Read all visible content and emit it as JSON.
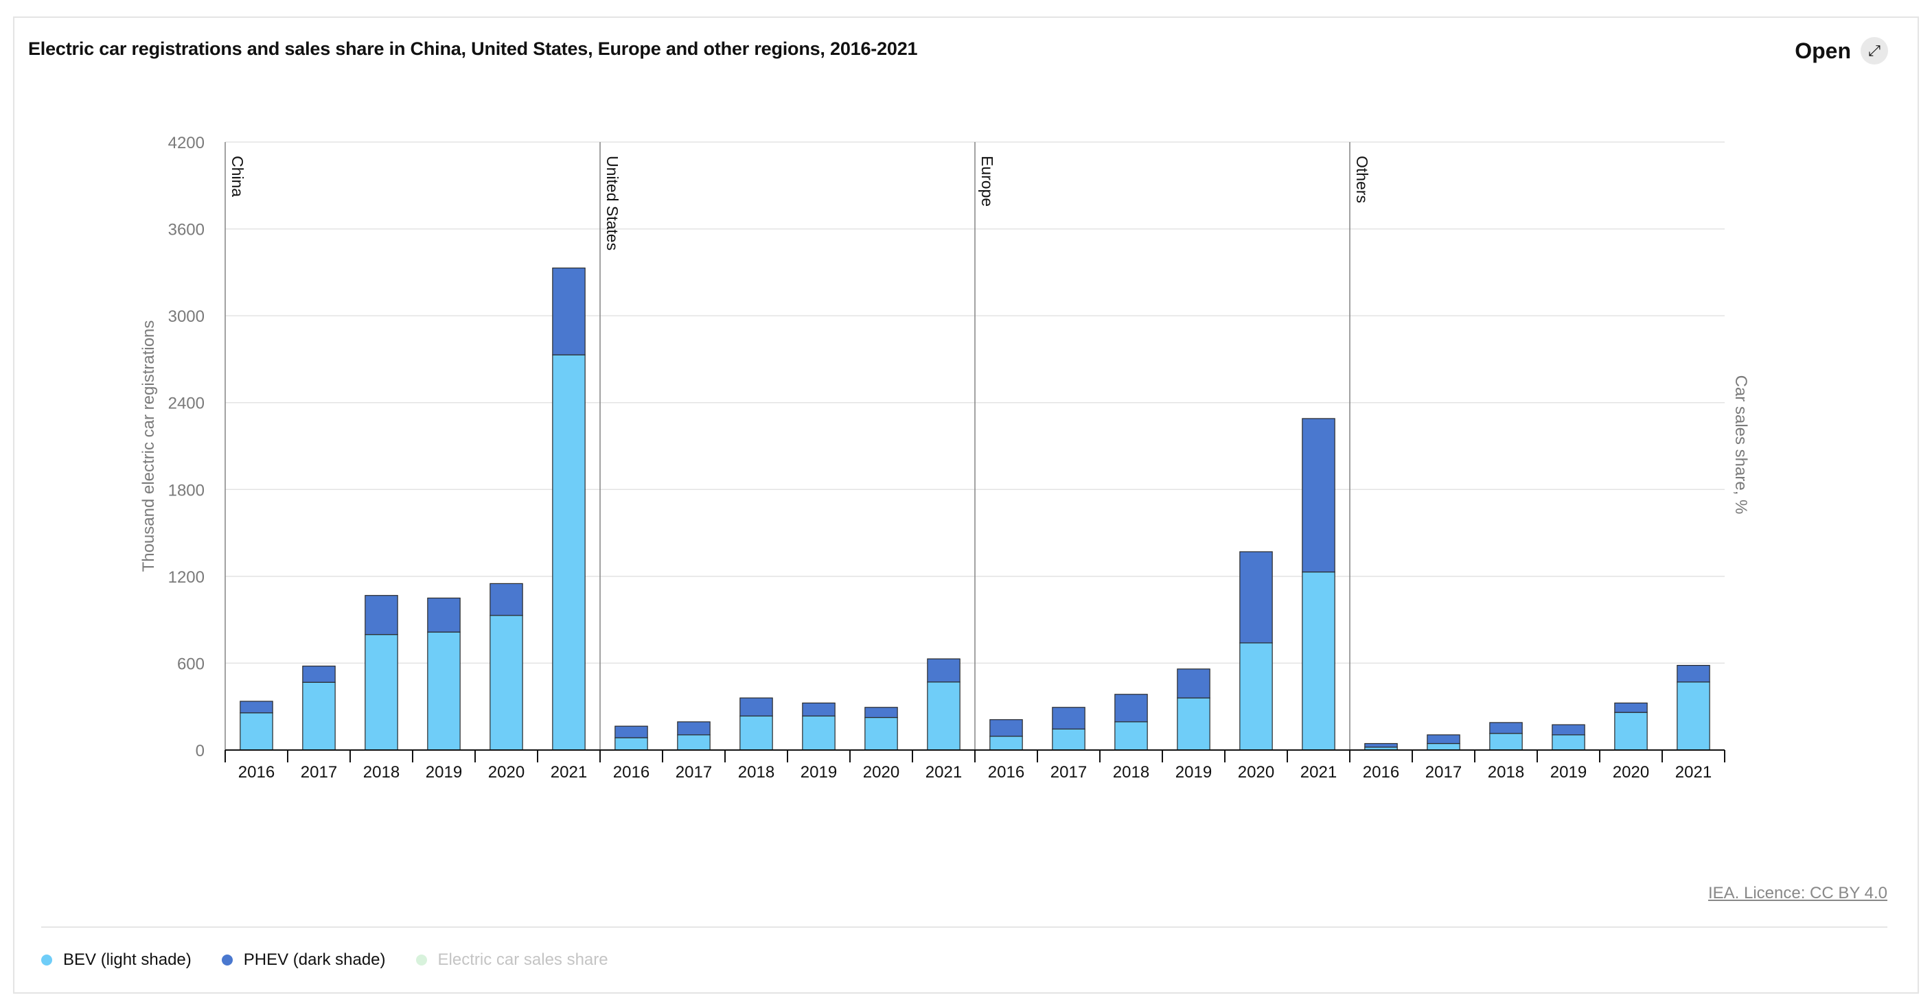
{
  "header": {
    "title": "Electric car registrations and sales share in China, United States, Europe and other regions, 2016-2021",
    "open_label": "Open",
    "open_icon": "expand-arrow-icon"
  },
  "footer": {
    "licence": "IEA. Licence: CC BY 4.0"
  },
  "legend": [
    {
      "label": "BEV (light shade)",
      "color": "#6fcdf8",
      "muted": false
    },
    {
      "label": "PHEV (dark shade)",
      "color": "#4a78cf",
      "muted": false
    },
    {
      "label": "Electric car sales share",
      "color": "#d8f2dc",
      "muted": true
    }
  ],
  "chart_data": {
    "type": "bar",
    "stacked": true,
    "ylabel": "Thousand electric car registrations",
    "y2label": "Car sales share, %",
    "ylim": [
      0,
      4200
    ],
    "yticks": [
      0,
      600,
      1200,
      1800,
      2400,
      3000,
      3600,
      4200
    ],
    "grid": true,
    "categories": [
      "2016",
      "2017",
      "2018",
      "2019",
      "2020",
      "2021"
    ],
    "colors": {
      "bev": "#6fcdf8",
      "phev": "#4a78cf"
    },
    "groups": [
      {
        "name": "China",
        "bev": [
          257,
          468,
          798,
          815,
          930,
          2730
        ],
        "phev": [
          80,
          112,
          270,
          235,
          220,
          600
        ]
      },
      {
        "name": "United States",
        "bev": [
          85,
          105,
          235,
          235,
          225,
          470
        ],
        "phev": [
          80,
          90,
          125,
          90,
          70,
          160
        ]
      },
      {
        "name": "Europe",
        "bev": [
          95,
          145,
          195,
          360,
          740,
          1230
        ],
        "phev": [
          115,
          150,
          190,
          200,
          630,
          1060
        ]
      },
      {
        "name": "Others",
        "bev": [
          20,
          45,
          115,
          105,
          260,
          470
        ],
        "phev": [
          25,
          60,
          75,
          70,
          65,
          115
        ]
      }
    ]
  }
}
